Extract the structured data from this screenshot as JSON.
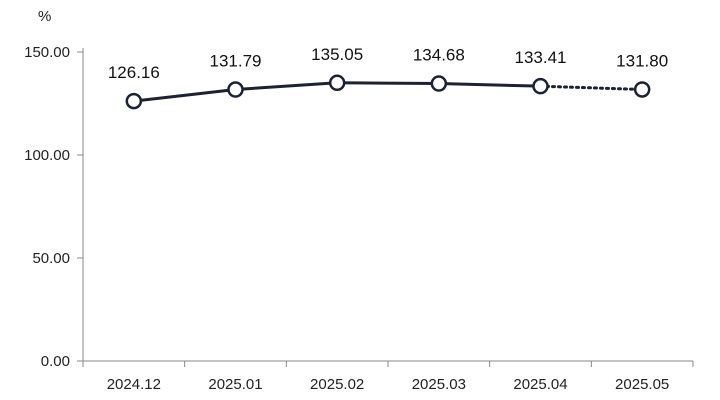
{
  "chart_data": {
    "type": "line",
    "title": "",
    "xlabel": "",
    "ylabel": "%",
    "ylim": [
      0,
      150
    ],
    "yticks": [
      "0.00",
      "50.00",
      "100.00",
      "150.00"
    ],
    "grid": false,
    "legend": "none",
    "categories": [
      "2024.12",
      "2025.01",
      "2025.02",
      "2025.03",
      "2025.04",
      "2025.05"
    ],
    "series": [
      {
        "values": [
          126.16,
          131.79,
          135.05,
          134.68,
          133.41,
          131.8
        ],
        "labels": [
          "126.16",
          "131.79",
          "135.05",
          "134.68",
          "133.41",
          "131.80"
        ],
        "solid_until_index": 4,
        "color": "#1c2233"
      }
    ],
    "axis_color": "#888888"
  }
}
